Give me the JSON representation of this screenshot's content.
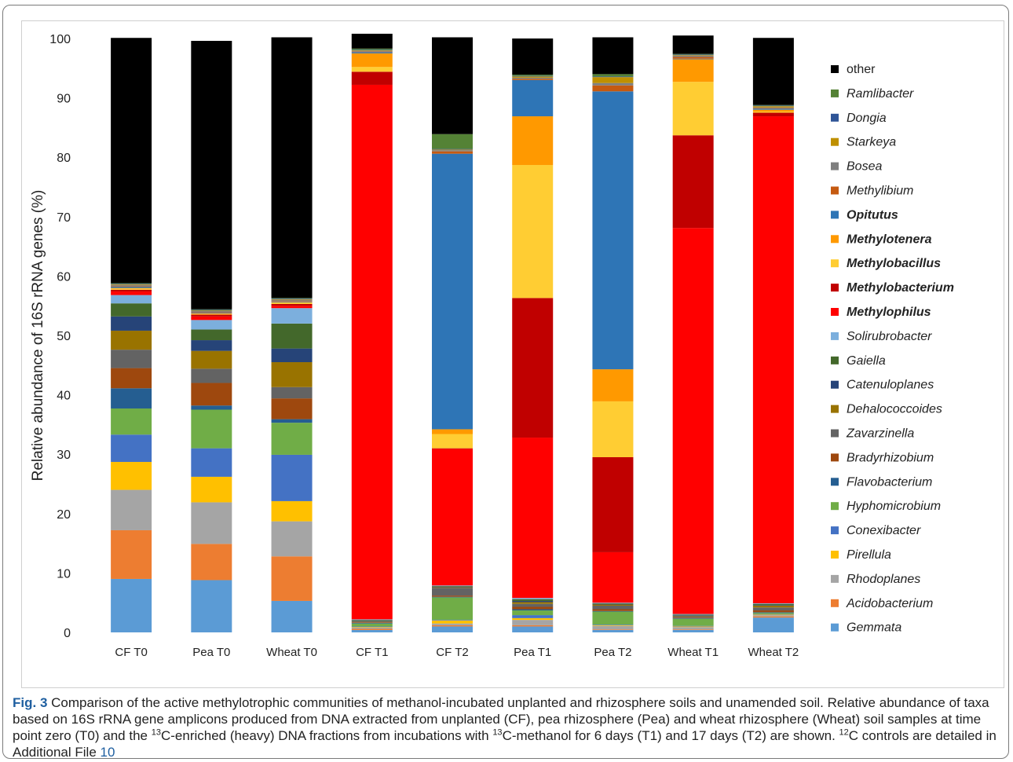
{
  "chart_data": {
    "type": "stacked-bar",
    "ylabel": "Relative abundance of 16S rRNA genes (%)",
    "ylim": [
      0,
      100
    ],
    "yticks": [
      0,
      10,
      20,
      30,
      40,
      50,
      60,
      70,
      80,
      90,
      100
    ],
    "legend_position": "right",
    "categories": [
      "CF T0",
      "Pea T0",
      "Wheat T0",
      "CF T1",
      "CF T2",
      "Pea  T1",
      "Pea T2",
      "Wheat T1",
      "Wheat T2"
    ],
    "series": [
      {
        "name": "Gemmata",
        "color": "#5b9bd5",
        "italic": true,
        "bold": false,
        "values": [
          9.0,
          8.8,
          5.3,
          0.4,
          1.0,
          1.0,
          0.4,
          0.4,
          2.5
        ]
      },
      {
        "name": "Acidobacterium",
        "color": "#ed7d31",
        "italic": true,
        "bold": false,
        "values": [
          8.2,
          6.1,
          7.5,
          0.2,
          0.2,
          0.2,
          0.1,
          0.1,
          0.2
        ]
      },
      {
        "name": "Rhodoplanes",
        "color": "#a5a5a5",
        "italic": true,
        "bold": false,
        "values": [
          6.8,
          7.0,
          5.9,
          0.2,
          0.3,
          0.9,
          0.6,
          0.4,
          0.2
        ]
      },
      {
        "name": "Pirellula",
        "color": "#ffc000",
        "italic": true,
        "bold": false,
        "values": [
          4.7,
          4.3,
          3.4,
          0.1,
          0.5,
          0.3,
          0.1,
          0.1,
          0.1
        ]
      },
      {
        "name": "Conexibacter",
        "color": "#4472c4",
        "italic": true,
        "bold": false,
        "values": [
          4.6,
          4.8,
          7.8,
          0.1,
          0.1,
          0.5,
          0.1,
          0.1,
          0.1
        ]
      },
      {
        "name": "Hyphomicrobium",
        "color": "#70ad47",
        "italic": true,
        "bold": false,
        "values": [
          4.4,
          6.5,
          5.4,
          0.5,
          3.8,
          0.8,
          2.2,
          1.2,
          0.2
        ]
      },
      {
        "name": "Flavobacterium",
        "color": "#255e91",
        "italic": true,
        "bold": false,
        "values": [
          3.4,
          0.7,
          0.6,
          0.1,
          0.1,
          0.2,
          0.1,
          0.1,
          0.1
        ]
      },
      {
        "name": "Bradyrhizobium",
        "color": "#9e480e",
        "italic": true,
        "bold": false,
        "values": [
          3.4,
          3.8,
          3.5,
          0.1,
          0.2,
          0.4,
          0.3,
          0.1,
          0.3
        ]
      },
      {
        "name": "Zavarzinella",
        "color": "#636363",
        "italic": true,
        "bold": false,
        "values": [
          3.1,
          2.4,
          1.9,
          0.1,
          1.3,
          0.5,
          0.6,
          0.2,
          0.5
        ]
      },
      {
        "name": "Dehalococcoides",
        "color": "#997300",
        "italic": true,
        "bold": false,
        "values": [
          3.2,
          3.0,
          4.2,
          0.1,
          0.1,
          0.3,
          0.2,
          0.1,
          0.3
        ]
      },
      {
        "name": "Catenuloplanes",
        "color": "#264478",
        "italic": true,
        "bold": false,
        "values": [
          2.4,
          1.8,
          2.3,
          0.1,
          0.1,
          0.2,
          0.1,
          0.1,
          0.1
        ]
      },
      {
        "name": "Gaiella",
        "color": "#43682b",
        "italic": true,
        "bold": false,
        "values": [
          2.2,
          1.8,
          4.2,
          0.1,
          0.1,
          0.3,
          0.1,
          0.1,
          0.2
        ]
      },
      {
        "name": "Solirubrobacter",
        "color": "#7cafdd",
        "italic": true,
        "bold": false,
        "values": [
          1.4,
          1.6,
          2.6,
          0.1,
          0.1,
          0.2,
          0.1,
          0.1,
          0.1
        ]
      },
      {
        "name": "Methylophilus",
        "color": "#ff0000",
        "italic": true,
        "bold": true,
        "values": [
          0.6,
          0.6,
          0.4,
          90.0,
          23.0,
          27.0,
          8.5,
          65.0,
          82.0
        ]
      },
      {
        "name": "Methylobacterium",
        "color": "#c00000",
        "italic": true,
        "bold": true,
        "values": [
          0.3,
          0.3,
          0.3,
          2.2,
          0.1,
          23.5,
          16.0,
          15.6,
          0.6
        ]
      },
      {
        "name": "Methylobacillus",
        "color": "#ffcd33",
        "italic": true,
        "bold": true,
        "values": [
          0.2,
          0.1,
          0.2,
          0.8,
          2.4,
          22.4,
          9.4,
          9.0,
          0.2
        ]
      },
      {
        "name": "Methylotenera",
        "color": "#ff9900",
        "italic": true,
        "bold": true,
        "values": [
          0.1,
          0.1,
          0.1,
          2.3,
          0.8,
          8.2,
          5.4,
          3.8,
          0.3
        ]
      },
      {
        "name": "Opitutus",
        "color": "#2e75b6",
        "italic": true,
        "bold": true,
        "values": [
          0.2,
          0.1,
          0.1,
          0.2,
          46.4,
          6.1,
          46.8,
          0.1,
          0.2
        ]
      },
      {
        "name": "Methylibium",
        "color": "#c55a11",
        "italic": true,
        "bold": false,
        "values": [
          0.1,
          0.1,
          0.1,
          0.1,
          0.4,
          0.2,
          1.0,
          0.3,
          0.1
        ]
      },
      {
        "name": "Bosea",
        "color": "#7f7f7f",
        "italic": true,
        "bold": false,
        "values": [
          0.2,
          0.2,
          0.2,
          0.1,
          0.2,
          0.2,
          0.4,
          0.2,
          0.1
        ]
      },
      {
        "name": "Starkeya",
        "color": "#bf9000",
        "italic": true,
        "bold": false,
        "values": [
          0.1,
          0.1,
          0.1,
          0.1,
          0.1,
          0.2,
          1.0,
          0.1,
          0.2
        ]
      },
      {
        "name": "Dongia",
        "color": "#2f5597",
        "italic": true,
        "bold": false,
        "values": [
          0.1,
          0.1,
          0.1,
          0.1,
          0.1,
          0.1,
          0.1,
          0.1,
          0.1
        ]
      },
      {
        "name": "Ramlibacter",
        "color": "#548235",
        "italic": true,
        "bold": false,
        "values": [
          0.1,
          0.1,
          0.1,
          0.2,
          2.5,
          0.2,
          0.4,
          0.1,
          0.1
        ]
      },
      {
        "name": "other",
        "color": "#000000",
        "italic": false,
        "bold": false,
        "values": [
          41.3,
          45.2,
          43.9,
          2.5,
          16.3,
          6.1,
          6.2,
          3.1,
          11.3
        ]
      }
    ]
  },
  "caption": {
    "fig_label": "Fig. 3",
    "part1": "Comparison of the active methylotrophic communities of methanol-incubated unplanted and rhizosphere soils and unamended soil. Relative abundance of taxa based on 16S rRNA gene amplicons produced from DNA extracted from unplanted (CF), pea rhizosphere (Pea) and wheat rhizosphere (Wheat) soil samples at time point zero (T0) and the ",
    "sup1": "13",
    "part2": "C-enriched (heavy) DNA fractions from incubations with ",
    "sup2": "13",
    "part3": "C-methanol for 6 days (T1) and 17 days (T2) are shown. ",
    "sup3": "12",
    "part4": "C controls are detailed in Additional File ",
    "link": "10"
  }
}
